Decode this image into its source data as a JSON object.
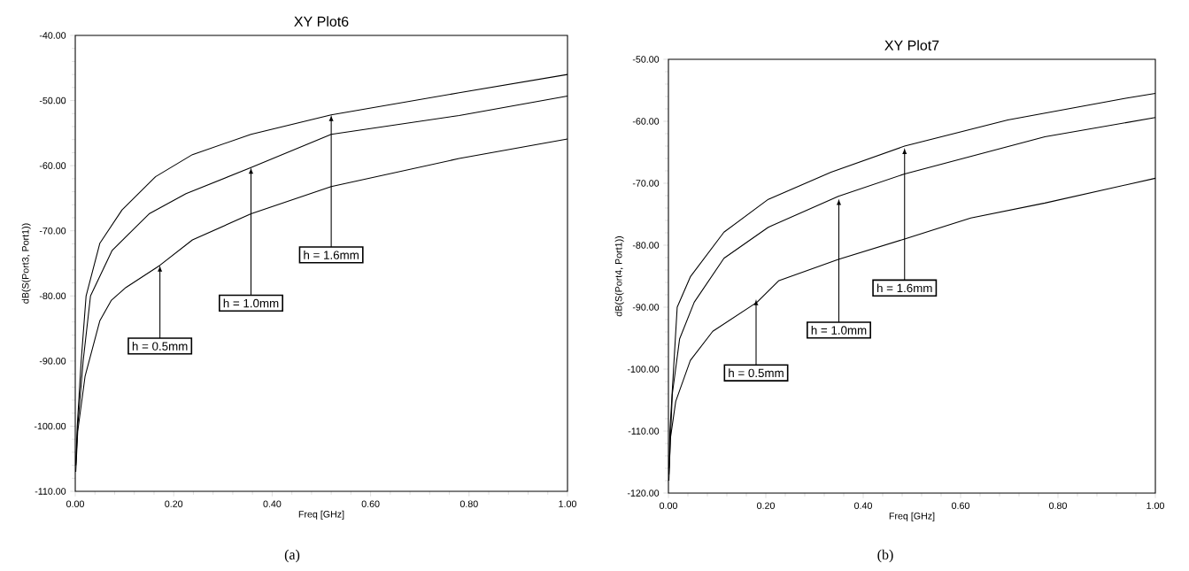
{
  "chart_data": [
    {
      "type": "line",
      "title": "XY Plot6",
      "xlabel": "Freq [GHz]",
      "ylabel": "dB(S(Port3, Port1))",
      "xlim": [
        0,
        1
      ],
      "ylim": [
        -110,
        -40
      ],
      "xticks": [
        {
          "value": 0,
          "label": "0.00"
        },
        {
          "value": 0.2,
          "label": "0.20"
        },
        {
          "value": 0.4,
          "label": "0.40"
        },
        {
          "value": 0.6,
          "label": "0.60"
        },
        {
          "value": 0.8,
          "label": "0.80"
        },
        {
          "value": 1,
          "label": "1.00"
        }
      ],
      "yticks": [
        {
          "value": -110,
          "label": "-110.00"
        },
        {
          "value": -100,
          "label": "-100.00"
        },
        {
          "value": -90,
          "label": "-90.00"
        },
        {
          "value": -80,
          "label": "-80.00"
        },
        {
          "value": -70,
          "label": "-70.00"
        },
        {
          "value": -60,
          "label": "-60.00"
        },
        {
          "value": -50,
          "label": "-50.00"
        },
        {
          "value": -40,
          "label": "-40.00"
        }
      ],
      "series": [
        {
          "color": "#000000",
          "x": [
            0.001,
            0.004,
            0.012,
            0.022,
            0.05,
            0.095,
            0.163,
            0.238,
            0.357,
            0.52,
            0.78,
            1.0
          ],
          "values": [
            -106,
            -100,
            -90,
            -80,
            -71.9,
            -66.8,
            -61.7,
            -58.3,
            -55.2,
            -52.2,
            -48.8,
            -46
          ]
        },
        {
          "color": "#000000",
          "x": [
            0.001,
            0.005,
            0.016,
            0.031,
            0.075,
            0.15,
            0.225,
            0.357,
            0.52,
            0.78,
            1.0
          ],
          "values": [
            -106,
            -100,
            -90,
            -80,
            -73,
            -67.4,
            -64.3,
            -60.3,
            -55.2,
            -52.3,
            -49.3
          ]
        },
        {
          "color": "#000000",
          "x": [
            0.001,
            0.005,
            0.02,
            0.05,
            0.073,
            0.103,
            0.172,
            0.238,
            0.357,
            0.52,
            0.78,
            1.0
          ],
          "values": [
            -107,
            -100.8,
            -92.3,
            -83.8,
            -80.7,
            -78.7,
            -75.3,
            -71.4,
            -67.4,
            -63.2,
            -58.9,
            -55.9
          ]
        }
      ],
      "annotations": [
        {
          "text": "h = 0.5mm",
          "x": 0.172,
          "y": -75.3
        },
        {
          "text": "h = 1.0mm",
          "x": 0.357,
          "y": -60.3
        },
        {
          "text": "h = 1.6mm",
          "x": 0.52,
          "y": -52.2
        },
        "(a)"
      ]
    },
    {
      "type": "line",
      "title": "XY Plot7",
      "xlabel": "Freq [GHz]",
      "ylabel": "dB(S(Port4, Port1))",
      "xlim": [
        0,
        1
      ],
      "ylim": [
        -120,
        -50
      ],
      "xticks": [
        {
          "value": 0,
          "label": "0.00"
        },
        {
          "value": 0.2,
          "label": "0.20"
        },
        {
          "value": 0.4,
          "label": "0.40"
        },
        {
          "value": 0.6,
          "label": "0.60"
        },
        {
          "value": 0.8,
          "label": "0.80"
        },
        {
          "value": 1,
          "label": "1.00"
        }
      ],
      "yticks": [
        {
          "value": -120,
          "label": "-120.00"
        },
        {
          "value": -110,
          "label": "-110.00"
        },
        {
          "value": -100,
          "label": "-100.00"
        },
        {
          "value": -90,
          "label": "-90.00"
        },
        {
          "value": -80,
          "label": "-80.00"
        },
        {
          "value": -70,
          "label": "-70.00"
        },
        {
          "value": -60,
          "label": "-60.00"
        },
        {
          "value": -50,
          "label": "-50.00"
        }
      ],
      "series": [
        {
          "color": "#000000",
          "x": [
            0.001,
            0.003,
            0.018,
            0.045,
            0.114,
            0.205,
            0.334,
            0.485,
            0.697,
            0.939,
            1.0
          ],
          "values": [
            -116,
            -110,
            -90,
            -85.1,
            -77.9,
            -72.6,
            -68.2,
            -64,
            -59.8,
            -56.3,
            -55.5
          ]
        },
        {
          "color": "#000000",
          "x": [
            0.001,
            0.008,
            0.023,
            0.053,
            0.114,
            0.205,
            0.349,
            0.485,
            0.773,
            1.0
          ],
          "values": [
            -117,
            -104,
            -95.1,
            -89.2,
            -82.1,
            -77.1,
            -72.1,
            -68.5,
            -62.5,
            -59.4
          ]
        },
        {
          "color": "#000000",
          "x": [
            0.001,
            0.004,
            0.015,
            0.045,
            0.091,
            0.182,
            0.227,
            0.349,
            0.485,
            0.621,
            0.773,
            1.0
          ],
          "values": [
            -118,
            -111.2,
            -105.2,
            -98.6,
            -93.9,
            -89.2,
            -85.7,
            -82.3,
            -79,
            -75.6,
            -73.2,
            -69.2
          ]
        }
      ],
      "annotations": [
        {
          "text": "h = 0.5mm",
          "x": 0.18,
          "y": -88.7
        },
        {
          "text": "h = 1.0mm",
          "x": 0.35,
          "y": -72.5
        },
        {
          "text": "h = 1.6mm",
          "x": 0.485,
          "y": -64.3
        },
        "(b)"
      ]
    }
  ]
}
